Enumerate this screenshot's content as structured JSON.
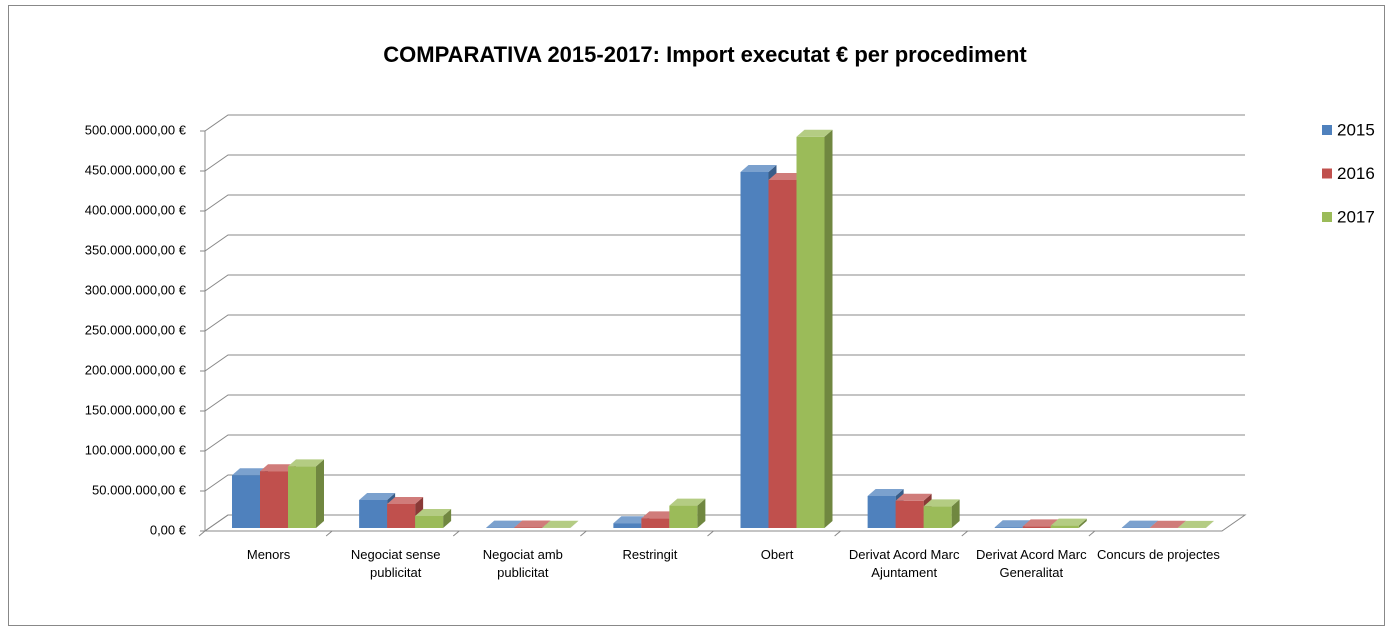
{
  "chart_data": {
    "type": "bar3d",
    "title": "COMPARATIVA 2015-2017: Import executat € per procediment",
    "categories": [
      "Menors",
      "Negociat sense publicitat",
      "Negociat amb publicitat",
      "Restringit",
      "Obert",
      "Derivat Acord Marc Ajuntament",
      "Derivat Acord Marc Generalitat",
      "Concurs de projectes"
    ],
    "series": [
      {
        "name": "2015",
        "color": "#4f81bd",
        "values": [
          66000000,
          35000000,
          500000,
          6000000,
          445000000,
          40000000,
          1000000,
          500000
        ]
      },
      {
        "name": "2016",
        "color": "#c0504d",
        "values": [
          71000000,
          30000000,
          600000,
          12000000,
          435000000,
          34000000,
          2000000,
          300000
        ]
      },
      {
        "name": "2017",
        "color": "#9bbb59",
        "values": [
          77000000,
          15000000,
          300000,
          28000000,
          489000000,
          27000000,
          3000000,
          200000
        ]
      }
    ],
    "ylim": [
      0,
      500000000
    ],
    "yticks": [
      {
        "value": 0,
        "label": "0,00 €"
      },
      {
        "value": 50000000,
        "label": "50.000.000,00 €"
      },
      {
        "value": 100000000,
        "label": "100.000.000,00 €"
      },
      {
        "value": 150000000,
        "label": "150.000.000,00 €"
      },
      {
        "value": 200000000,
        "label": "200.000.000,00 €"
      },
      {
        "value": 250000000,
        "label": "250.000.000,00 €"
      },
      {
        "value": 300000000,
        "label": "300.000.000,00 €"
      },
      {
        "value": 350000000,
        "label": "350.000.000,00 €"
      },
      {
        "value": 400000000,
        "label": "400.000.000,00 €"
      },
      {
        "value": 450000000,
        "label": "450.000.000,00 €"
      },
      {
        "value": 500000000,
        "label": "500.000.000,00 €"
      }
    ],
    "grid": true,
    "legend": "right"
  }
}
